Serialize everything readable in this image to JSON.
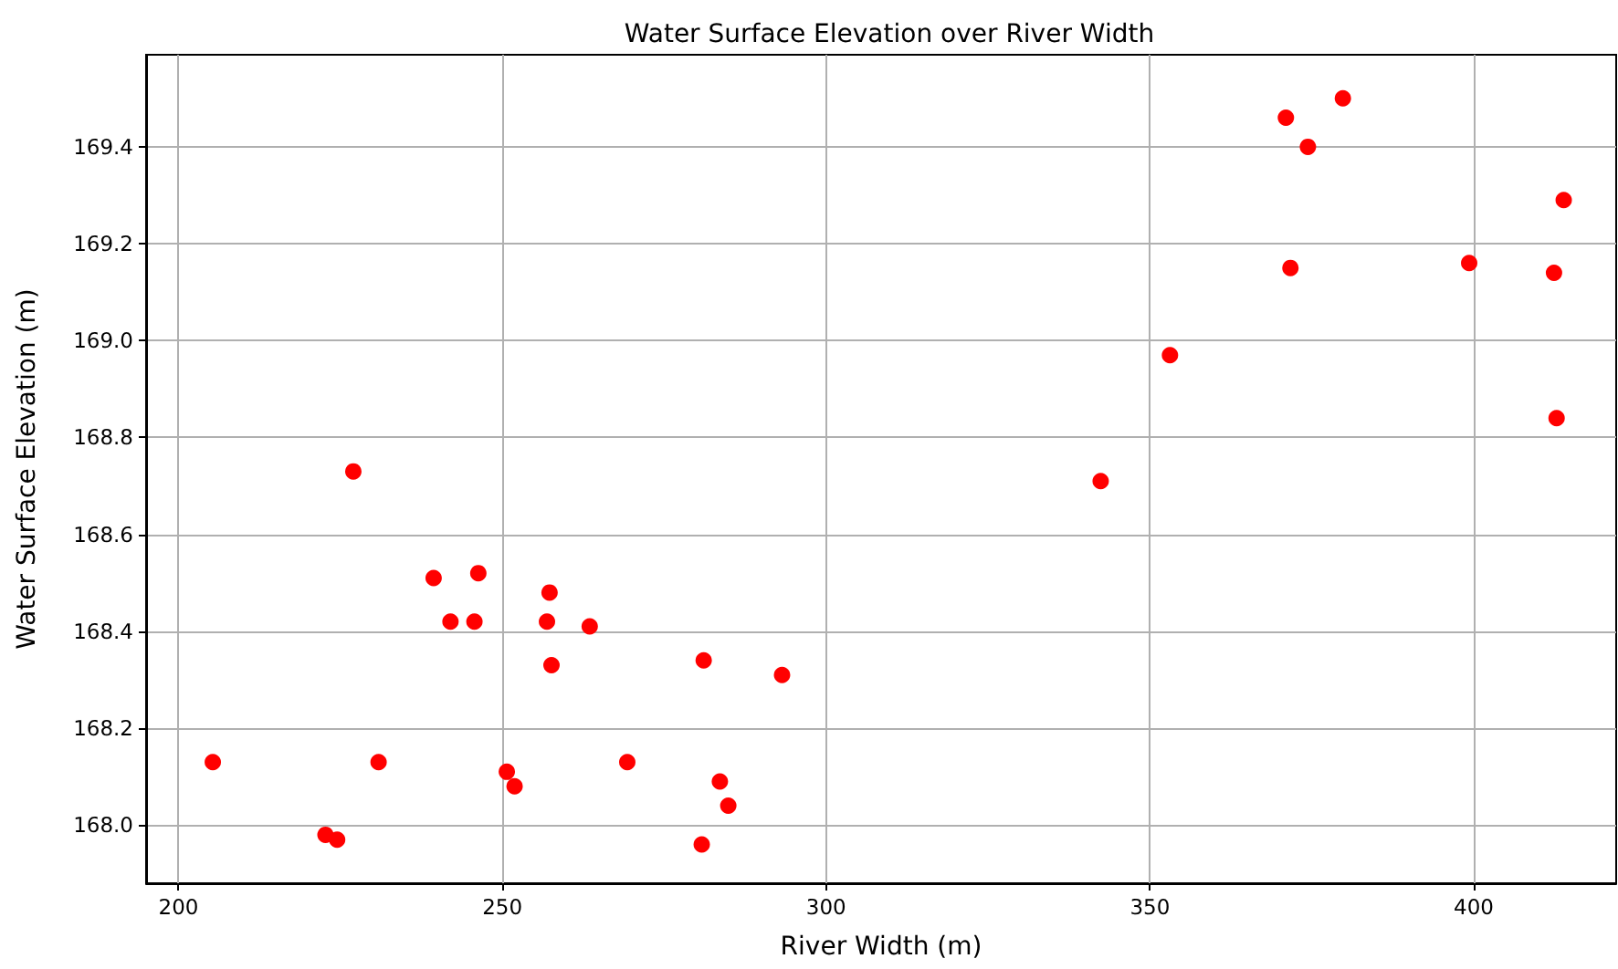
{
  "chart_data": {
    "type": "scatter",
    "title": "Water Surface Elevation over River Width",
    "xlabel": "River Width (m)",
    "ylabel": "Water Surface Elevation (m)",
    "x": [
      205.3,
      222.7,
      224.5,
      230.9,
      239.4,
      246.3,
      242.0,
      245.7,
      257.3,
      256.9,
      263.5,
      257.6,
      250.7,
      251.9,
      269.3,
      281.1,
      293.2,
      283.6,
      284.9,
      280.8,
      227.0,
      342.4,
      353.1,
      371.0,
      379.8,
      374.4,
      371.7,
      399.3,
      413.9,
      412.4,
      412.8
    ],
    "values": [
      168.13,
      167.98,
      167.97,
      168.13,
      168.51,
      168.52,
      168.42,
      168.42,
      168.48,
      168.42,
      168.41,
      168.33,
      168.11,
      168.08,
      168.13,
      168.34,
      168.31,
      168.09,
      168.04,
      167.96,
      168.73,
      168.71,
      168.97,
      169.46,
      169.5,
      169.4,
      169.15,
      169.16,
      169.29,
      169.14,
      168.84
    ],
    "color": "#ff0000",
    "marker": "circle",
    "xlim": [
      195,
      422
    ],
    "xticks": [
      200,
      250,
      300,
      350,
      400
    ],
    "ylim": [
      167.88,
      169.59
    ],
    "yticks": [
      {
        "value": 168,
        "label": "168.0"
      },
      168.2,
      168.4,
      168.6,
      168.8,
      {
        "value": 169,
        "label": "169.0"
      },
      169.2,
      169.4
    ],
    "grid": true
  }
}
